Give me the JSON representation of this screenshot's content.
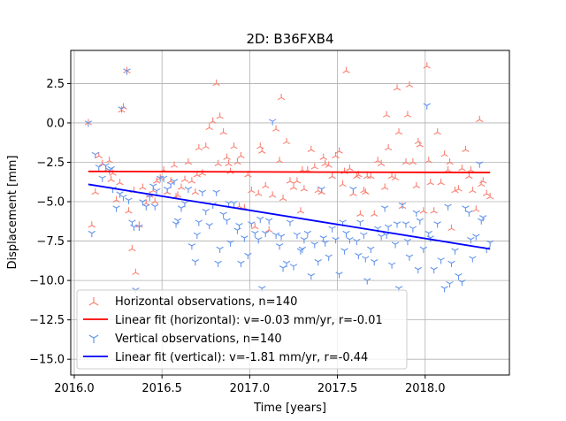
{
  "chart_data": {
    "type": "scatter",
    "title": "2D: B36FXB4",
    "xlabel": "Time [years]",
    "ylabel": "Displacement [mm]",
    "xlim": [
      2015.98,
      2018.48
    ],
    "ylim": [
      -16.0,
      4.6
    ],
    "xticks": [
      2016.0,
      2016.5,
      2017.0,
      2017.5,
      2018.0
    ],
    "xtick_labels": [
      "2016.0",
      "2016.5",
      "2017.0",
      "2017.5",
      "2018.0"
    ],
    "yticks": [
      2.5,
      0.0,
      -2.5,
      -5.0,
      -7.5,
      -10.0,
      -12.5,
      -15.0
    ],
    "ytick_labels": [
      "2.5",
      "0.0",
      "−2.5",
      "−5.0",
      "−7.5",
      "−10.0",
      "−12.5",
      "−15.0"
    ],
    "grid": true,
    "legend_location": "lower-left",
    "colors": {
      "horizontal_points": "#fa8072",
      "horizontal_fit": "#ff0000",
      "vertical_points": "#6495ed",
      "vertical_fit": "#0000ff"
    },
    "series": [
      {
        "name": "Horizontal observations, n=140",
        "kind": "points",
        "marker": "tri_up",
        "x": [
          2016.08,
          2016.1,
          2016.12,
          2016.14,
          2016.16,
          2016.18,
          2016.2,
          2016.22,
          2016.24,
          2016.26,
          2016.28,
          2016.3,
          2016.31,
          2016.33,
          2016.35,
          2016.37,
          2016.39,
          2016.41,
          2016.43,
          2016.45,
          2016.47,
          2016.49,
          2016.51,
          2016.53,
          2016.55,
          2016.57,
          2016.59,
          2016.61,
          2016.63,
          2016.65,
          2016.67,
          2016.69,
          2016.71,
          2016.73,
          2016.75,
          2016.77,
          2016.79,
          2016.81,
          2016.83,
          2016.85,
          2016.87,
          2016.89,
          2016.91,
          2016.93,
          2016.95,
          2016.97,
          2016.99,
          2017.01,
          2017.03,
          2017.05,
          2017.07,
          2017.09,
          2017.11,
          2017.13,
          2017.15,
          2017.17,
          2017.19,
          2017.21,
          2017.23,
          2017.25,
          2017.27,
          2017.29,
          2017.31,
          2017.33,
          2017.35,
          2017.37,
          2017.39,
          2017.41,
          2017.43,
          2017.45,
          2017.47,
          2017.49,
          2017.51,
          2017.53,
          2017.55,
          2017.57,
          2017.59,
          2017.61,
          2017.63,
          2017.65,
          2017.67,
          2017.69,
          2017.71,
          2017.73,
          2017.75,
          2017.77,
          2017.79,
          2017.81,
          2017.83,
          2017.85,
          2017.87,
          2017.89,
          2017.91,
          2017.93,
          2017.95,
          2017.97,
          2017.99,
          2018.01,
          2018.03,
          2018.05,
          2018.07,
          2018.09,
          2018.11,
          2018.13,
          2018.15,
          2018.17,
          2018.19,
          2018.21,
          2018.23,
          2018.25,
          2018.27,
          2018.29,
          2018.31,
          2018.33,
          2018.35,
          2018.37,
          2016.21,
          2016.27,
          2016.34,
          2016.46,
          2016.58,
          2016.7,
          2016.82,
          2016.88,
          2016.94,
          2017.06,
          2017.18,
          2017.3,
          2017.42,
          2017.54,
          2017.66,
          2017.78,
          2017.84,
          2017.9,
          2018.02,
          2018.14,
          2018.26,
          2018.32,
          2017.62,
          2017.96
        ],
        "y": [
          0.0,
          -6.5,
          -4.4,
          -2.1,
          -2.6,
          -3.0,
          -2.4,
          -3.2,
          -4.9,
          -3.8,
          1.0,
          3.3,
          -5.6,
          -8.0,
          -9.5,
          -6.5,
          -4.1,
          -5.1,
          -4.6,
          -4.3,
          -3.7,
          -3.5,
          -3.0,
          -4.4,
          -3.7,
          -2.7,
          -4.6,
          -4.1,
          -3.6,
          -2.5,
          -3.7,
          -4.4,
          -1.6,
          -3.2,
          -1.5,
          -0.3,
          0.1,
          2.5,
          0.4,
          -0.6,
          -2.2,
          -3.1,
          -1.5,
          -2.5,
          -2.1,
          -5.4,
          -3.3,
          -4.3,
          -6.6,
          -4.5,
          -1.8,
          -4.0,
          -6.8,
          -4.6,
          -0.4,
          -2.4,
          -4.8,
          -1.2,
          -3.7,
          -4.1,
          -3.7,
          -5.6,
          -4.2,
          -3.0,
          -1.7,
          -2.8,
          -4.3,
          -4.4,
          -2.6,
          -2.7,
          -3.4,
          -2.1,
          -1.8,
          -3.9,
          3.3,
          -2.9,
          -4.5,
          -3.4,
          -5.8,
          -4.3,
          -3.4,
          -3.4,
          -5.8,
          -2.4,
          -2.6,
          -4.1,
          -1.6,
          -3.4,
          -3.5,
          -0.6,
          -5.3,
          -2.5,
          2.4,
          -2.5,
          -4.0,
          -1.4,
          -5.6,
          3.6,
          -3.8,
          -5.6,
          -0.6,
          -3.8,
          -2.0,
          -3.0,
          -6.7,
          -4.3,
          -4.2,
          -2.9,
          -1.7,
          -3.4,
          -4.3,
          -5.5,
          0.2,
          -3.7,
          -4.5,
          -4.7,
          -3.6,
          0.8,
          -4.3,
          -5.0,
          -4.7,
          -3.3,
          -2.6,
          -2.6,
          -5.3,
          -1.5,
          1.6,
          -3.0,
          -2.2,
          -3.1,
          -4.4,
          0.5,
          2.2,
          0.5,
          -2.4,
          -2.5,
          -3.0,
          -3.9,
          -3.3,
          -1.2
        ],
        "color": "#fa8072"
      },
      {
        "name": "Linear fit (horizontal): v=-0.03 mm/yr, r=-0.01",
        "kind": "line",
        "x": [
          2016.08,
          2018.37
        ],
        "y": [
          -3.08,
          -3.15
        ],
        "color": "#ff0000"
      },
      {
        "name": "Vertical observations, n=140",
        "kind": "points",
        "marker": "tri_down",
        "x": [
          2016.08,
          2016.1,
          2016.12,
          2016.14,
          2016.16,
          2016.18,
          2016.2,
          2016.22,
          2016.24,
          2016.26,
          2016.28,
          2016.3,
          2016.31,
          2016.33,
          2016.35,
          2016.37,
          2016.39,
          2016.41,
          2016.43,
          2016.45,
          2016.47,
          2016.49,
          2016.51,
          2016.53,
          2016.55,
          2016.57,
          2016.59,
          2016.61,
          2016.63,
          2016.65,
          2016.67,
          2016.69,
          2016.71,
          2016.73,
          2016.75,
          2016.77,
          2016.79,
          2016.81,
          2016.83,
          2016.85,
          2016.87,
          2016.89,
          2016.91,
          2016.93,
          2016.95,
          2016.97,
          2016.99,
          2017.01,
          2017.03,
          2017.05,
          2017.07,
          2017.09,
          2017.11,
          2017.13,
          2017.15,
          2017.17,
          2017.19,
          2017.21,
          2017.23,
          2017.25,
          2017.27,
          2017.29,
          2017.31,
          2017.33,
          2017.35,
          2017.37,
          2017.39,
          2017.41,
          2017.43,
          2017.45,
          2017.47,
          2017.49,
          2017.51,
          2017.53,
          2017.55,
          2017.57,
          2017.59,
          2017.61,
          2017.63,
          2017.65,
          2017.67,
          2017.69,
          2017.71,
          2017.73,
          2017.75,
          2017.77,
          2017.79,
          2017.81,
          2017.83,
          2017.85,
          2017.87,
          2017.89,
          2017.91,
          2017.93,
          2017.95,
          2017.97,
          2017.99,
          2018.01,
          2018.03,
          2018.05,
          2018.07,
          2018.09,
          2018.11,
          2018.13,
          2018.15,
          2018.17,
          2018.19,
          2018.21,
          2018.23,
          2018.25,
          2018.27,
          2018.29,
          2018.31,
          2018.33,
          2018.35,
          2018.37,
          2016.21,
          2016.27,
          2016.34,
          2016.46,
          2016.58,
          2016.7,
          2016.82,
          2016.88,
          2016.94,
          2017.06,
          2017.18,
          2017.3,
          2017.42,
          2017.54,
          2017.66,
          2017.78,
          2017.84,
          2017.9,
          2018.02,
          2018.14,
          2018.26,
          2018.32,
          2017.62,
          2017.96
        ],
        "y": [
          0.0,
          -7.0,
          -2.0,
          -2.8,
          -3.5,
          -2.7,
          -3.0,
          -4.2,
          -5.4,
          -4.5,
          -4.7,
          3.3,
          -4.9,
          -6.3,
          -10.6,
          -6.6,
          -5.0,
          -5.3,
          -4.7,
          -4.0,
          -4.3,
          -3.5,
          -3.5,
          -4.2,
          -3.9,
          -3.7,
          -6.2,
          -5.4,
          -5.1,
          -4.2,
          -7.8,
          -8.8,
          -6.3,
          -4.4,
          -5.6,
          -6.5,
          -5.2,
          -4.4,
          -8.0,
          -5.8,
          -6.2,
          -7.6,
          -5.1,
          -6.8,
          -8.9,
          -7.3,
          -8.4,
          -6.4,
          -7.0,
          -7.4,
          -10.5,
          -7.0,
          -6.2,
          0.1,
          -7.1,
          -7.8,
          -9.2,
          -8.9,
          -6.3,
          -9.1,
          -7.1,
          -8.1,
          -7.4,
          -7.0,
          -9.7,
          -7.7,
          -8.8,
          -4.2,
          -7.6,
          -8.5,
          -6.7,
          -7.4,
          -9.6,
          -6.3,
          -7.0,
          -7.4,
          -4.2,
          -7.5,
          -6.3,
          -7.1,
          -10.0,
          -8.0,
          -8.8,
          -6.7,
          -7.2,
          -5.4,
          -6.6,
          -9.0,
          -7.7,
          -10.5,
          -5.2,
          -6.4,
          -8.5,
          -6.7,
          -5.7,
          -6.2,
          -8.0,
          1.1,
          -7.3,
          -9.3,
          -6.4,
          -8.7,
          -10.5,
          -5.3,
          -8.9,
          -8.1,
          -9.7,
          -10.1,
          -5.4,
          -5.7,
          -8.6,
          -7.2,
          -2.6,
          -6.0,
          -8.0,
          -7.6,
          -2.9,
          0.9,
          -6.6,
          -5.3,
          -6.4,
          -7.1,
          -8.9,
          -5.1,
          -6.5,
          -6.1,
          -7.2,
          -8.0,
          -7.3,
          -8.1,
          -8.6,
          -7.1,
          -6.4,
          -7.5,
          -7.0,
          -10.2,
          -7.4,
          -6.2,
          -8.4,
          -9.3
        ],
        "color": "#6495ed"
      },
      {
        "name": "Linear fit (vertical): v=-1.81 mm/yr, r=-0.44",
        "kind": "line",
        "x": [
          2016.08,
          2018.37
        ],
        "y": [
          -3.9,
          -8.0
        ],
        "color": "#0000ff"
      }
    ]
  }
}
